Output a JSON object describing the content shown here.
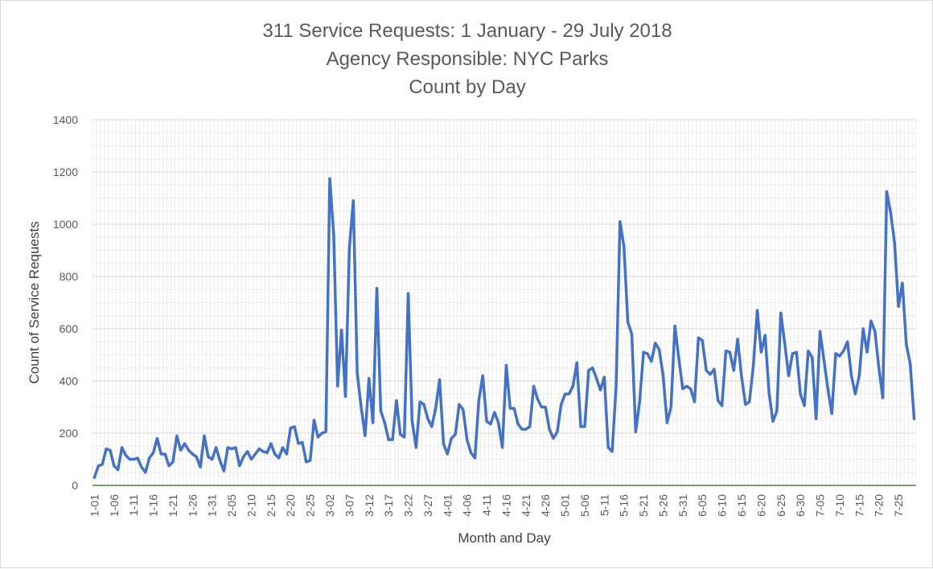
{
  "chart_data": {
    "type": "line",
    "title": [
      "311 Service Requests: 1 January - 29 July 2018",
      "Agency Responsible: NYC Parks",
      "Count by Day"
    ],
    "xlabel": "Month and Day",
    "ylabel": "Count of Service Requests",
    "ylim": [
      0,
      1400
    ],
    "yticks": [
      0,
      200,
      400,
      600,
      800,
      1000,
      1200,
      1400
    ],
    "xtick_labels": [
      "1-01",
      "1-06",
      "1-11",
      "1-16",
      "1-21",
      "1-26",
      "1-31",
      "2-05",
      "2-10",
      "2-15",
      "2-20",
      "2-25",
      "3-02",
      "3-07",
      "3-12",
      "3-17",
      "3-22",
      "3-27",
      "4-01",
      "4-06",
      "4-11",
      "4-16",
      "4-21",
      "4-26",
      "5-01",
      "5-06",
      "5-11",
      "5-16",
      "5-21",
      "5-26",
      "5-31",
      "6-05",
      "6-10",
      "6-15",
      "6-20",
      "6-25",
      "6-30",
      "7-05",
      "7-10",
      "7-15",
      "7-20",
      "7-25"
    ],
    "grid": true,
    "legend": "none",
    "colors": {
      "line": "#4472c4",
      "zero_axis": "#548235",
      "grid": "#d9d9d9"
    },
    "series": [
      {
        "values": [
          30,
          75,
          80,
          140,
          135,
          75,
          60,
          145,
          115,
          100,
          100,
          105,
          70,
          50,
          105,
          125,
          180,
          120,
          120,
          75,
          90,
          190,
          135,
          160,
          135,
          120,
          110,
          70,
          190,
          110,
          100,
          145,
          95,
          55,
          145,
          140,
          145,
          75,
          110,
          130,
          100,
          120,
          140,
          130,
          125,
          160,
          120,
          105,
          145,
          120,
          220,
          225,
          160,
          165,
          90,
          95,
          250,
          185,
          200,
          205,
          1175,
          960,
          380,
          595,
          340,
          910,
          1090,
          430,
          300,
          190,
          410,
          240,
          755,
          285,
          240,
          175,
          175,
          325,
          195,
          185,
          735,
          245,
          145,
          320,
          310,
          255,
          225,
          295,
          405,
          160,
          120,
          180,
          195,
          310,
          290,
          175,
          125,
          105,
          325,
          420,
          245,
          235,
          280,
          240,
          145,
          460,
          295,
          295,
          235,
          215,
          215,
          225,
          380,
          330,
          300,
          300,
          215,
          180,
          205,
          310,
          350,
          350,
          380,
          470,
          225,
          225,
          440,
          450,
          410,
          365,
          415,
          145,
          130,
          375,
          1010,
          915,
          625,
          580,
          205,
          320,
          510,
          505,
          475,
          545,
          520,
          420,
          240,
          300,
          610,
          485,
          370,
          380,
          370,
          320,
          565,
          555,
          440,
          425,
          445,
          325,
          305,
          515,
          510,
          440,
          560,
          415,
          310,
          320,
          460,
          670,
          510,
          575,
          355,
          245,
          285,
          660,
          545,
          420,
          505,
          510,
          350,
          305,
          515,
          490,
          255,
          590,
          480,
          370,
          275,
          505,
          495,
          515,
          550,
          420,
          350,
          420,
          600,
          510,
          630,
          590,
          450,
          335,
          1125,
          1045,
          930,
          685,
          775,
          540,
          465,
          255
        ]
      }
    ]
  }
}
